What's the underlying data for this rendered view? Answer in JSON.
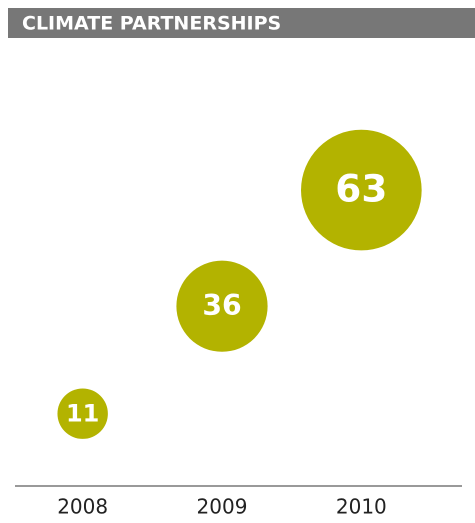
{
  "chart_data": {
    "type": "bubble",
    "title": "CLIMATE PARTNERSHIPS",
    "categories": [
      "2008",
      "2009",
      "2010"
    ],
    "values": [
      11,
      36,
      63
    ],
    "color": "#b3b300"
  }
}
